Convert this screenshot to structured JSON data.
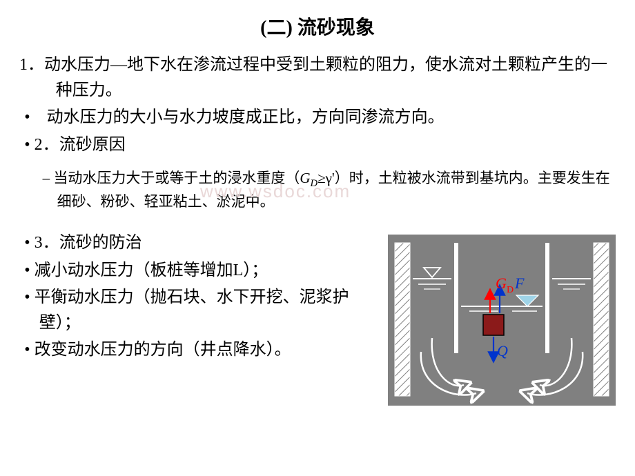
{
  "title": "(二) 流砂现象",
  "para1": "1．动水压力—地下水在渗流过程中受到土颗粒的阻力，使水流对土颗粒产生的一种压力。",
  "bullet1": "• 动水压力的大小与水力坡度成正比，方向同渗流方向。",
  "bullet2": "•   2．流砂原因",
  "sub1_pre": "– 当动水压力大于或等于土的浸水重度（",
  "sub1_gd": "G",
  "sub1_gd_sub": "D",
  "sub1_mid": "≥γ'）时，土粒被水流带到基坑内。主要发生在细砂、粉砂、轻亚粘土、淤泥中。",
  "lower": {
    "b3": "•   3．流砂的防治",
    "b4": "•   减小动水压力（板桩等增加L）；",
    "b5": "•   平衡动水压力（抛石块、水下开挖、泥浆护壁）；",
    "b6": "•   改变动水压力的方向（井点降水）。"
  },
  "watermark": "www.wsdoc.com",
  "diagram": {
    "bg": "#808080",
    "wall_fill": "#ffffff",
    "hatch_stroke": "#808080",
    "water_line": "#ffffff",
    "triangle_fill": "#9fd4e8",
    "triangle2_fill": "#ffffff",
    "square_fill": "#8b1a1a",
    "square_stroke": "#000000",
    "arrow_red": "#ff0000",
    "arrow_blue": "#0033cc",
    "flow_stroke": "#ffffff",
    "label_G": "G",
    "label_G_sub": "D",
    "label_F": "F",
    "label_Q": "Q"
  }
}
